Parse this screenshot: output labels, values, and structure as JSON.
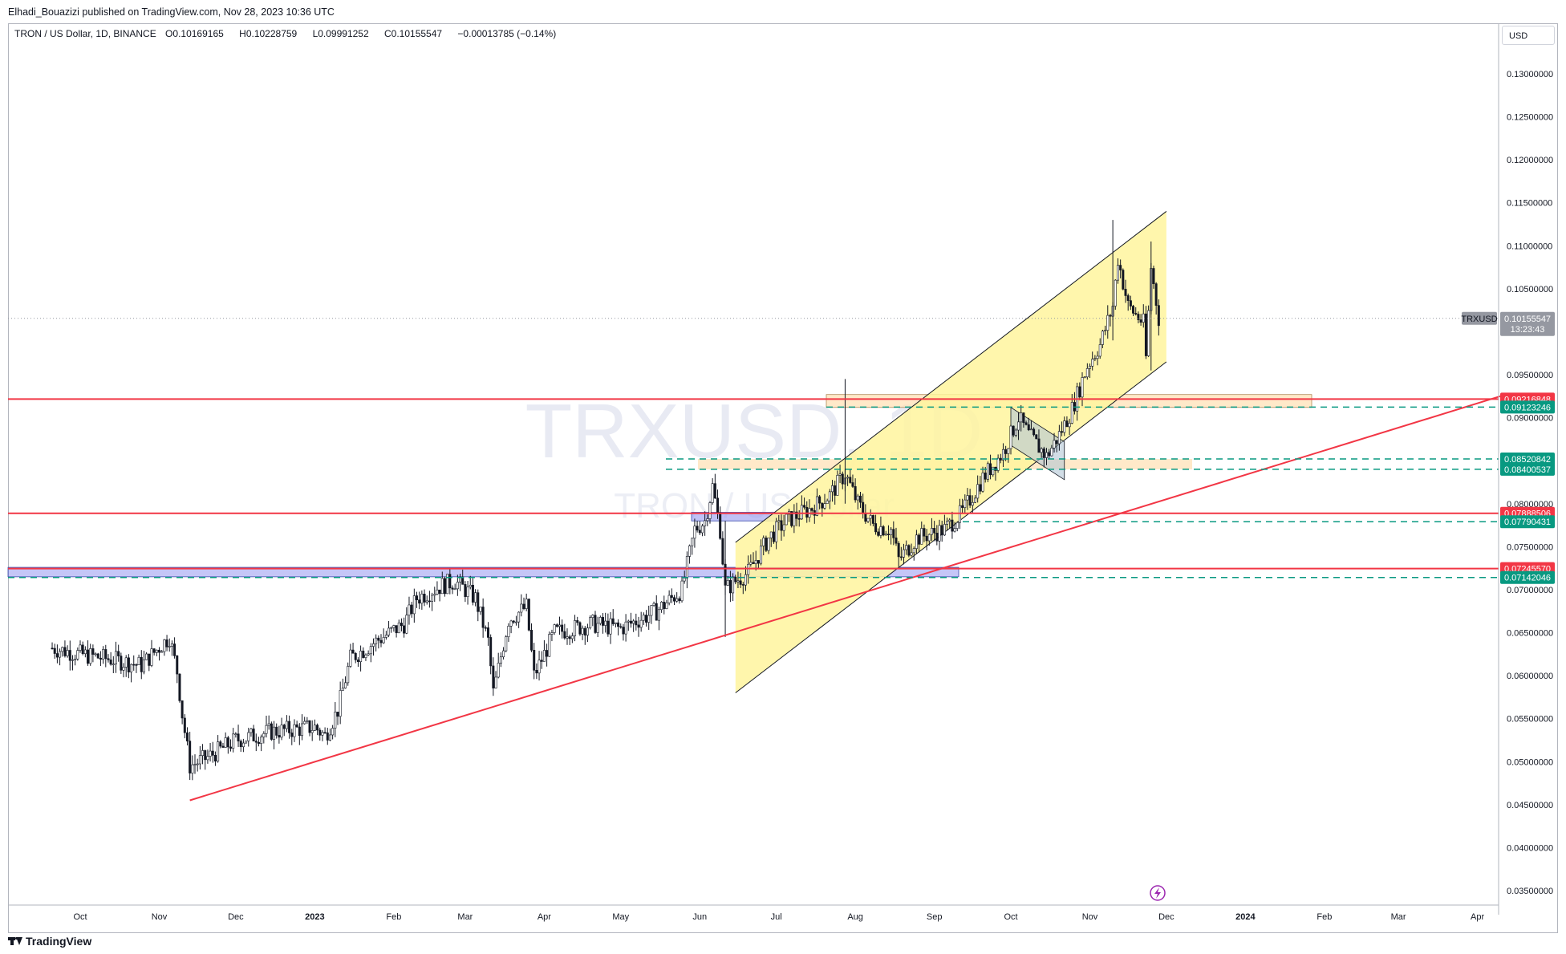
{
  "publish_line": "Elhadi_Bouazizi published on TradingView.com, Nov 28, 2023 10:36 UTC",
  "symbol": {
    "title": "TRON / US Dollar, 1D, BINANCE",
    "open_label": "O",
    "open": "0.10169165",
    "high_label": "H",
    "high": "0.10228759",
    "low_label": "L",
    "low": "0.09991252",
    "close_label": "C",
    "close": "0.10155547",
    "change": "−0.00013785 (−0.14%)"
  },
  "watermark": {
    "ticker": "TRXUSD, 1D",
    "name": "TRON / US Dollar"
  },
  "currency": "USD",
  "footer_brand": "TradingView",
  "colors": {
    "up": "#131722",
    "down": "#131722",
    "resistance": "#f23645",
    "support_dashed": "#089981",
    "channel_fill": "#fff59d",
    "zone_fill": "#ffe0b2",
    "blue_zone": "#9598f0",
    "trendline": "#f23645",
    "last_price_tag": "#9598a1"
  },
  "chart_data": {
    "type": "candlestick",
    "title": "TRON / US Dollar, 1D, BINANCE",
    "ylim": [
      0.0335,
      0.1355
    ],
    "y_ticks": [
      "0.03500000",
      "0.04000000",
      "0.04500000",
      "0.05000000",
      "0.05500000",
      "0.06000000",
      "0.06500000",
      "0.07000000",
      "0.07500000",
      "0.08000000",
      "0.08500000",
      "0.09000000",
      "0.09500000",
      "0.10000000",
      "0.10500000",
      "0.11000000",
      "0.11500000",
      "0.12000000",
      "0.12500000",
      "0.13000000"
    ],
    "x_ticks": [
      "Oct",
      "Nov",
      "Dec",
      "2023",
      "Feb",
      "Mar",
      "Apr",
      "May",
      "Jun",
      "Jul",
      "Aug",
      "Sep",
      "Oct",
      "Nov",
      "Dec",
      "2024",
      "Feb",
      "Mar",
      "Apr"
    ],
    "x_ticks_bold": [
      "2023",
      "2024"
    ],
    "series": [
      {
        "name": "TRXUSD",
        "points": [
          [
            "2022-09-20",
            0.0632
          ],
          [
            "2022-10-01",
            0.0625
          ],
          [
            "2022-10-15",
            0.0618
          ],
          [
            "2022-10-25",
            0.0612
          ],
          [
            "2022-11-05",
            0.0645
          ],
          [
            "2022-11-08",
            0.0605
          ],
          [
            "2022-11-10",
            0.0555
          ],
          [
            "2022-11-13",
            0.0495
          ],
          [
            "2022-11-20",
            0.0505
          ],
          [
            "2022-12-01",
            0.0525
          ],
          [
            "2022-12-15",
            0.0535
          ],
          [
            "2023-01-01",
            0.054
          ],
          [
            "2023-01-05",
            0.053
          ],
          [
            "2023-01-10",
            0.056
          ],
          [
            "2023-01-15",
            0.062
          ],
          [
            "2023-01-25",
            0.064
          ],
          [
            "2023-02-05",
            0.066
          ],
          [
            "2023-02-10",
            0.069
          ],
          [
            "2023-02-20",
            0.0705
          ],
          [
            "2023-02-25",
            0.071
          ],
          [
            "2023-03-05",
            0.069
          ],
          [
            "2023-03-10",
            0.064
          ],
          [
            "2023-03-12",
            0.058
          ],
          [
            "2023-03-18",
            0.0665
          ],
          [
            "2023-03-25",
            0.068
          ],
          [
            "2023-03-28",
            0.06
          ],
          [
            "2023-04-05",
            0.065
          ],
          [
            "2023-04-20",
            0.066
          ],
          [
            "2023-05-01",
            0.0655
          ],
          [
            "2023-05-15",
            0.0675
          ],
          [
            "2023-05-25",
            0.07
          ],
          [
            "2023-05-30",
            0.077
          ],
          [
            "2023-06-03",
            0.078
          ],
          [
            "2023-06-06",
            0.082
          ],
          [
            "2023-06-09",
            0.077
          ],
          [
            "2023-06-11",
            0.07
          ],
          [
            "2023-06-15",
            0.071
          ],
          [
            "2023-06-20",
            0.072
          ],
          [
            "2023-06-28",
            0.076
          ],
          [
            "2023-07-05",
            0.078
          ],
          [
            "2023-07-15",
            0.0795
          ],
          [
            "2023-07-22",
            0.081
          ],
          [
            "2023-07-28",
            0.0835
          ],
          [
            "2023-08-02",
            0.08
          ],
          [
            "2023-08-08",
            0.0775
          ],
          [
            "2023-08-15",
            0.077
          ],
          [
            "2023-08-18",
            0.0735
          ],
          [
            "2023-08-25",
            0.076
          ],
          [
            "2023-09-05",
            0.077
          ],
          [
            "2023-09-12",
            0.079
          ],
          [
            "2023-09-20",
            0.083
          ],
          [
            "2023-09-28",
            0.086
          ],
          [
            "2023-10-01",
            0.088
          ],
          [
            "2023-10-04",
            0.09
          ],
          [
            "2023-10-08",
            0.088
          ],
          [
            "2023-10-15",
            0.0855
          ],
          [
            "2023-10-20",
            0.088
          ],
          [
            "2023-10-25",
            0.091
          ],
          [
            "2023-10-31",
            0.096
          ],
          [
            "2023-11-05",
            0.0985
          ],
          [
            "2023-11-10",
            0.103
          ],
          [
            "2023-11-12",
            0.1085
          ],
          [
            "2023-11-16",
            0.103
          ],
          [
            "2023-11-22",
            0.101
          ],
          [
            "2023-11-23",
            0.097
          ],
          [
            "2023-11-25",
            0.1075
          ],
          [
            "2023-11-28",
            0.10155547
          ]
        ]
      }
    ],
    "levels": [
      {
        "value": 0.09216848,
        "label": "0.09216848",
        "style": "solid",
        "color": "#f23645"
      },
      {
        "value": 0.09123246,
        "label": "0.09123246",
        "style": "dashed",
        "color": "#089981"
      },
      {
        "value": 0.08520842,
        "label": "0.08520842",
        "style": "dashed",
        "color": "#089981"
      },
      {
        "value": 0.08400537,
        "label": "0.08400537",
        "style": "dashed",
        "color": "#089981"
      },
      {
        "value": 0.07888506,
        "label": "0.07888506",
        "style": "solid",
        "color": "#f23645"
      },
      {
        "value": 0.07790431,
        "label": "0.07790431",
        "style": "dashed",
        "color": "#089981"
      },
      {
        "value": 0.0724557,
        "label": "0.07245570",
        "style": "solid",
        "color": "#f23645"
      },
      {
        "value": 0.07142046,
        "label": "0.07142046",
        "style": "dashed",
        "color": "#089981"
      }
    ],
    "last_price": {
      "ticker": "TRXUSD",
      "value": "0.10155547",
      "countdown": "13:23:43"
    },
    "trendline": {
      "start": [
        "2022-11-13",
        0.0455
      ],
      "end": [
        "2024-04-10",
        0.0925
      ]
    },
    "channel": {
      "lower_start": [
        "2023-06-15",
        0.058
      ],
      "upper_start": [
        "2023-06-15",
        0.0755
      ],
      "lower_end": [
        "2023-12-01",
        0.0965
      ],
      "upper_end": [
        "2023-12-01",
        0.114
      ]
    },
    "grid": false,
    "legend": "top-left"
  }
}
